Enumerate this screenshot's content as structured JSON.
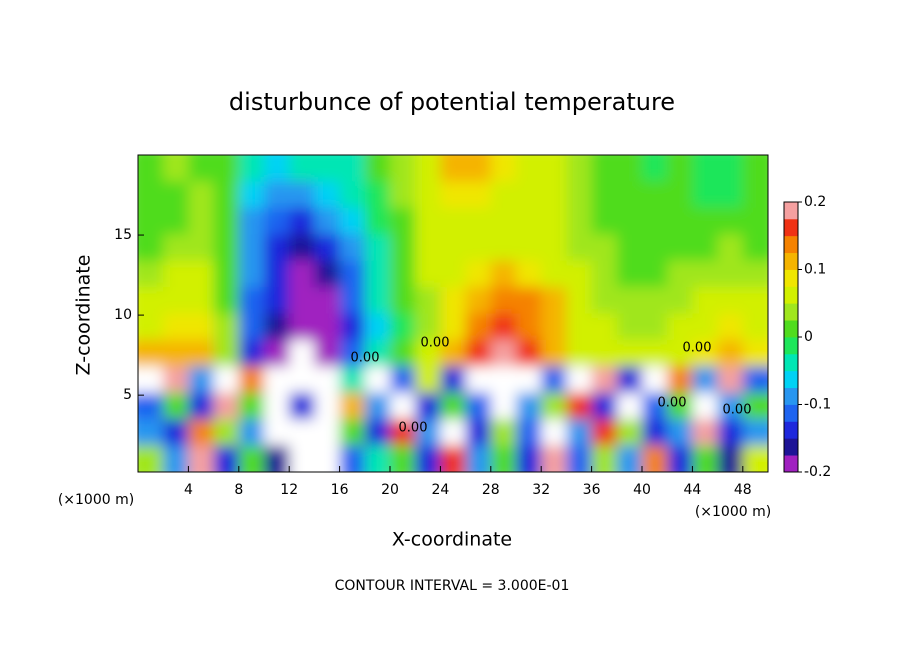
{
  "chart_data": {
    "type": "contour",
    "title": "disturbunce of potential temperature",
    "xlabel": "X-coordinate",
    "ylabel": "Z-coordinate",
    "x_unit": "(×1000 m)",
    "note": "CONTOUR INTERVAL = 3.000E-01",
    "contour_labels": [
      "0.00",
      "0.00",
      "0.00",
      "0.00",
      "0.00",
      "0.00"
    ],
    "xlim": [
      0,
      50
    ],
    "ylim": [
      0.2,
      20
    ],
    "xticks": [
      4,
      8,
      12,
      16,
      20,
      24,
      28,
      32,
      36,
      40,
      44,
      48
    ],
    "yticks": [
      5,
      10,
      15
    ],
    "colorbar": {
      "lim": [
        -0.2,
        0.2
      ],
      "ticks": [
        -0.2,
        -0.1,
        0,
        0.1,
        0.2
      ],
      "colors": [
        "#a020c0",
        "#1e1496",
        "#1e28dc",
        "#1e64f0",
        "#2896f0",
        "#00d2f5",
        "#00e6b4",
        "#1ee65a",
        "#50dc1e",
        "#a0e61e",
        "#d2f000",
        "#f0e600",
        "#f5b400",
        "#f58200",
        "#f03214",
        "#f5a0a0"
      ],
      "out_color": "#ffffff"
    },
    "z": [
      [
        0.02,
        0.03,
        0.02,
        0.0,
        -0.05,
        -0.07,
        -0.05,
        -0.04,
        -0.03,
        0.0,
        0.03,
        0.06,
        0.1,
        0.1,
        0.08,
        0.06,
        0.05,
        0.04,
        0.02,
        0.0,
        -0.01,
        0.0,
        -0.01,
        -0.02,
        0.0
      ],
      [
        0.01,
        0.02,
        0.03,
        0.0,
        -0.07,
        -0.1,
        -0.09,
        -0.07,
        -0.05,
        -0.01,
        0.03,
        0.06,
        0.08,
        0.08,
        0.07,
        0.06,
        0.05,
        0.04,
        0.02,
        0.0,
        0.0,
        0.01,
        -0.01,
        -0.01,
        0.0
      ],
      [
        0.0,
        0.02,
        0.04,
        0.01,
        -0.08,
        -0.12,
        -0.13,
        -0.1,
        -0.07,
        -0.02,
        0.02,
        0.05,
        0.06,
        0.06,
        0.06,
        0.05,
        0.05,
        0.04,
        0.02,
        0.01,
        0.0,
        0.01,
        0.0,
        0.02,
        0.01
      ],
      [
        0.01,
        0.03,
        0.04,
        0.01,
        -0.09,
        -0.14,
        -0.16,
        -0.13,
        -0.09,
        -0.03,
        0.02,
        0.05,
        0.06,
        0.07,
        0.07,
        0.06,
        0.05,
        0.04,
        0.03,
        0.01,
        0.01,
        0.02,
        0.02,
        0.03,
        0.02
      ],
      [
        0.03,
        0.05,
        0.05,
        0.01,
        -0.1,
        -0.15,
        -0.18,
        -0.16,
        -0.11,
        -0.04,
        0.01,
        0.05,
        0.07,
        0.09,
        0.1,
        0.09,
        0.07,
        0.05,
        0.03,
        0.02,
        0.02,
        0.03,
        0.03,
        0.04,
        0.04
      ],
      [
        0.05,
        0.07,
        0.07,
        0.02,
        -0.11,
        -0.15,
        -0.19,
        -0.18,
        -0.12,
        -0.05,
        0.0,
        0.04,
        0.08,
        0.12,
        0.14,
        0.13,
        0.1,
        0.06,
        0.04,
        0.03,
        0.03,
        0.04,
        0.05,
        0.06,
        0.05
      ],
      [
        0.07,
        0.09,
        0.08,
        0.03,
        -0.12,
        -0.17,
        -0.18,
        -0.19,
        -0.13,
        -0.06,
        -0.01,
        0.04,
        0.09,
        0.14,
        0.16,
        0.15,
        0.11,
        0.07,
        0.05,
        0.04,
        0.04,
        0.05,
        0.07,
        0.08,
        0.07
      ],
      [
        0.1,
        0.12,
        0.1,
        0.04,
        -0.14,
        -0.19,
        0.25,
        -0.18,
        -0.12,
        -0.05,
        0.0,
        0.05,
        0.11,
        0.16,
        0.18,
        0.17,
        0.12,
        0.07,
        0.06,
        0.05,
        0.05,
        0.07,
        0.09,
        0.1,
        0.09
      ],
      [
        0.25,
        0.18,
        -0.1,
        0.25,
        0.15,
        -0.3,
        0.25,
        0.25,
        -0.05,
        0.25,
        -0.12,
        0.05,
        -0.15,
        0.25,
        0.25,
        0.25,
        -0.12,
        0.25,
        0.18,
        -0.14,
        0.25,
        0.15,
        -0.1,
        0.2,
        -0.12
      ],
      [
        -0.12,
        0.01,
        -0.15,
        0.18,
        0.02,
        0.25,
        -0.14,
        0.25,
        0.12,
        -0.1,
        0.25,
        -0.14,
        0.0,
        -0.12,
        0.25,
        -0.08,
        0.03,
        0.17,
        -0.15,
        0.25,
        -0.12,
        0.02,
        0.25,
        -0.1,
        0.01
      ],
      [
        -0.08,
        -0.14,
        0.15,
        0.03,
        -0.1,
        0.25,
        0.25,
        0.25,
        0.01,
        -0.14,
        0.16,
        -0.1,
        0.25,
        -0.15,
        0.03,
        -0.12,
        0.25,
        -0.1,
        0.16,
        0.03,
        -0.14,
        -0.09,
        0.18,
        -0.13,
        -0.08
      ],
      [
        0.03,
        -0.1,
        0.18,
        -0.14,
        0.02,
        -0.16,
        0.25,
        0.25,
        -0.12,
        -0.05,
        0.02,
        -0.13,
        0.16,
        -0.1,
        0.01,
        -0.15,
        0.18,
        -0.12,
        0.03,
        -0.1,
        0.15,
        -0.13,
        0.02,
        -0.16,
        0.05
      ]
    ]
  }
}
